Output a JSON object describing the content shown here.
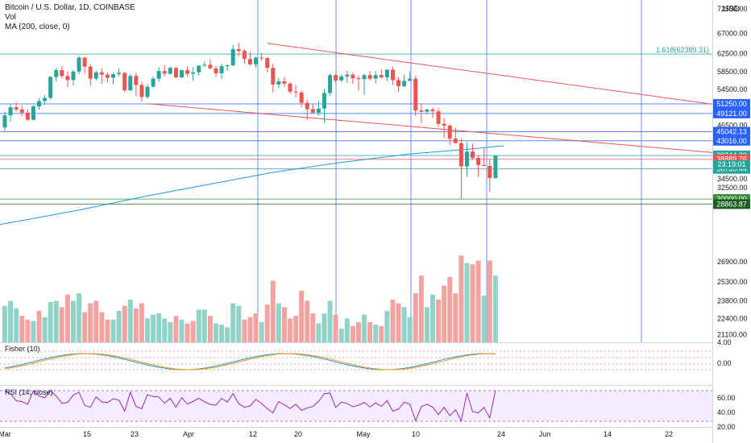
{
  "header": {
    "title": "Bitcoin / U.S. Dollar, 1D, COINBASE",
    "vol_label": "Vol",
    "ma_label": "MA (200, close, 0)",
    "currency": "USD"
  },
  "chart_data": {
    "type": "candlestick",
    "title": "Bitcoin / U.S. Dollar, 1D, COINBASE",
    "price_axis_ticks": [
      "72500.00",
      "67000.00",
      "62500.00",
      "58500.00",
      "54500.00",
      "50500.00",
      "46500.00",
      "42500.00",
      "38500.00",
      "34500.00",
      "32500.00",
      "30500.00",
      "26900.00",
      "25300.00",
      "23800.00",
      "22400.00",
      "21100.00"
    ],
    "date_labels": [
      "Mar",
      "15",
      "23",
      "Apr",
      "12",
      "20",
      "May",
      "10",
      "24",
      "Jun",
      "14",
      "22"
    ],
    "price_levels": [
      {
        "value": 62389.31,
        "label": "1.618(62389.31)",
        "color": "#26a69a"
      },
      {
        "value": 51250.0,
        "label": "51250.00",
        "color": "#2962ff"
      },
      {
        "value": 49121.0,
        "label": "49121.00",
        "color": "#2962ff"
      },
      {
        "value": 45042.13,
        "label": "45042.13",
        "color": "#2962ff"
      },
      {
        "value": 43016.0,
        "label": "43016.00",
        "color": "#2962ff"
      },
      {
        "value": 39744.2,
        "label": "39744.20",
        "color": "#26a69a"
      },
      {
        "value": 38889.76,
        "label": "38889.76",
        "color": "#ef5350"
      },
      {
        "value": 36735.44,
        "label": "36735.44",
        "color": "#26a69a"
      },
      {
        "value": 30000.0,
        "label": "30000.00",
        "color": "#388e3c"
      },
      {
        "value": 28863.87,
        "label": "28863.87",
        "color": "#1b5e20"
      }
    ],
    "countdown": "23:19:01",
    "last_price": 39744.2,
    "candles": [
      [
        46000,
        49500,
        45200,
        48700
      ],
      [
        48700,
        51200,
        47300,
        50500
      ],
      [
        50500,
        51700,
        49500,
        50000
      ],
      [
        50000,
        50900,
        48500,
        49300
      ],
      [
        49300,
        50000,
        47500,
        47700
      ],
      [
        47700,
        51000,
        47600,
        50700
      ],
      [
        50700,
        52500,
        50000,
        51900
      ],
      [
        51900,
        53200,
        51100,
        52600
      ],
      [
        52600,
        57500,
        52300,
        57300
      ],
      [
        57300,
        59300,
        56300,
        58800
      ],
      [
        58800,
        59700,
        57000,
        57500
      ],
      [
        57500,
        58500,
        55000,
        56600
      ],
      [
        56600,
        58900,
        55400,
        58500
      ],
      [
        58500,
        62000,
        57900,
        61600
      ],
      [
        61600,
        61800,
        58000,
        59600
      ],
      [
        59600,
        60200,
        55200,
        56900
      ],
      [
        56900,
        58700,
        56500,
        58300
      ],
      [
        58300,
        59200,
        55700,
        57800
      ],
      [
        57800,
        58200,
        56100,
        57100
      ],
      [
        57100,
        58200,
        55600,
        57900
      ],
      [
        57900,
        59200,
        57500,
        58200
      ],
      [
        58200,
        58400,
        53900,
        54300
      ],
      [
        54300,
        57900,
        54100,
        57500
      ],
      [
        57500,
        58200,
        53000,
        55500
      ],
      [
        55500,
        56200,
        51800,
        52800
      ],
      [
        52800,
        55700,
        52400,
        55100
      ],
      [
        55100,
        57400,
        54900,
        56900
      ],
      [
        56900,
        59500,
        56200,
        58600
      ],
      [
        58600,
        59900,
        57400,
        58000
      ],
      [
        58000,
        59600,
        57800,
        59300
      ],
      [
        59300,
        59600,
        57000,
        57200
      ],
      [
        57200,
        58900,
        57000,
        58800
      ],
      [
        58800,
        59700,
        57300,
        58000
      ],
      [
        58000,
        59500,
        56400,
        58300
      ],
      [
        58300,
        59900,
        57700,
        59800
      ],
      [
        59800,
        60800,
        59500,
        60000
      ],
      [
        60000,
        61200,
        59000,
        59200
      ],
      [
        59200,
        59800,
        57300,
        58100
      ],
      [
        58100,
        60200,
        56800,
        59700
      ],
      [
        59700,
        60100,
        58600,
        59900
      ],
      [
        59900,
        64400,
        59700,
        63500
      ],
      [
        63500,
        64900,
        61900,
        63100
      ],
      [
        63100,
        63500,
        60300,
        61300
      ],
      [
        61300,
        62800,
        59800,
        60100
      ],
      [
        60100,
        61800,
        59300,
        61600
      ],
      [
        61600,
        62600,
        60900,
        61500
      ],
      [
        61500,
        61700,
        58300,
        59300
      ],
      [
        59300,
        60200,
        53800,
        55600
      ],
      [
        55600,
        57100,
        54800,
        56300
      ],
      [
        56300,
        57300,
        55000,
        55800
      ],
      [
        55800,
        56100,
        53500,
        54000
      ],
      [
        54000,
        55500,
        52700,
        53800
      ],
      [
        53800,
        54200,
        50500,
        51500
      ],
      [
        51500,
        52200,
        47600,
        50100
      ],
      [
        50100,
        51200,
        49100,
        49300
      ],
      [
        49300,
        51900,
        48700,
        50200
      ],
      [
        50200,
        54600,
        47000,
        53700
      ],
      [
        53700,
        58000,
        53100,
        57700
      ],
      [
        57700,
        58000,
        55900,
        56500
      ],
      [
        56500,
        57900,
        56100,
        57400
      ],
      [
        57400,
        58700,
        56000,
        57800
      ],
      [
        57800,
        58300,
        55700,
        57000
      ],
      [
        57000,
        57600,
        54200,
        56800
      ],
      [
        56800,
        58100,
        53300,
        57700
      ],
      [
        57700,
        58600,
        56500,
        56900
      ],
      [
        56900,
        58600,
        55800,
        57700
      ],
      [
        57700,
        58900,
        56900,
        57200
      ],
      [
        57200,
        59000,
        56300,
        58900
      ],
      [
        58900,
        59600,
        55500,
        56600
      ],
      [
        56600,
        57300,
        54000,
        55200
      ],
      [
        55200,
        57800,
        55000,
        56400
      ],
      [
        56400,
        58500,
        56300,
        56900
      ],
      [
        56900,
        57600,
        48500,
        49800
      ],
      [
        49800,
        51200,
        46900,
        49500
      ],
      [
        49500,
        50200,
        48900,
        50000
      ],
      [
        50000,
        50500,
        48100,
        49600
      ],
      [
        49600,
        50300,
        46100,
        46800
      ],
      [
        46800,
        48100,
        43600,
        46400
      ],
      [
        46400,
        46700,
        42100,
        43500
      ],
      [
        43500,
        45900,
        42400,
        42500
      ],
      [
        42500,
        43600,
        30000,
        37300
      ],
      [
        37300,
        42600,
        35000,
        40600
      ],
      [
        40600,
        42400,
        38800,
        39200
      ],
      [
        39200,
        39900,
        34900,
        37600
      ],
      [
        37600,
        41300,
        37400,
        37400
      ],
      [
        37400,
        38900,
        31600,
        34700
      ],
      [
        34700,
        39800,
        34500,
        39744
      ]
    ],
    "volumes": [
      [
        23400,
        "up"
      ],
      [
        23800,
        "up"
      ],
      [
        23200,
        "up"
      ],
      [
        22600,
        "down"
      ],
      [
        22300,
        "down"
      ],
      [
        22200,
        "up"
      ],
      [
        23000,
        "down"
      ],
      [
        22500,
        "up"
      ],
      [
        23700,
        "up"
      ],
      [
        23800,
        "up"
      ],
      [
        23300,
        "down"
      ],
      [
        24300,
        "down"
      ],
      [
        23800,
        "up"
      ],
      [
        24400,
        "up"
      ],
      [
        22900,
        "down"
      ],
      [
        23600,
        "down"
      ],
      [
        23800,
        "down"
      ],
      [
        22900,
        "down"
      ],
      [
        22300,
        "down"
      ],
      [
        22300,
        "up"
      ],
      [
        23000,
        "up"
      ],
      [
        23400,
        "down"
      ],
      [
        23900,
        "up"
      ],
      [
        23200,
        "down"
      ],
      [
        23600,
        "down"
      ],
      [
        22400,
        "up"
      ],
      [
        22700,
        "up"
      ],
      [
        22800,
        "up"
      ],
      [
        22400,
        "up"
      ],
      [
        22100,
        "up"
      ],
      [
        22600,
        "down"
      ],
      [
        22300,
        "up"
      ],
      [
        22000,
        "down"
      ],
      [
        22200,
        "down"
      ],
      [
        23100,
        "up"
      ],
      [
        23100,
        "up"
      ],
      [
        22600,
        "down"
      ],
      [
        22000,
        "up"
      ],
      [
        21900,
        "up"
      ],
      [
        21700,
        "up"
      ],
      [
        23600,
        "up"
      ],
      [
        23400,
        "up"
      ],
      [
        22300,
        "down"
      ],
      [
        22500,
        "down"
      ],
      [
        22800,
        "down"
      ],
      [
        22100,
        "up"
      ],
      [
        23500,
        "down"
      ],
      [
        25400,
        "down"
      ],
      [
        23600,
        "up"
      ],
      [
        23300,
        "down"
      ],
      [
        22400,
        "down"
      ],
      [
        22600,
        "down"
      ],
      [
        24600,
        "down"
      ],
      [
        23800,
        "down"
      ],
      [
        22800,
        "down"
      ],
      [
        22000,
        "up"
      ],
      [
        22800,
        "up"
      ],
      [
        23800,
        "up"
      ],
      [
        22700,
        "down"
      ],
      [
        21600,
        "up"
      ],
      [
        22400,
        "up"
      ],
      [
        21800,
        "down"
      ],
      [
        22100,
        "down"
      ],
      [
        22700,
        "up"
      ],
      [
        22100,
        "down"
      ],
      [
        21900,
        "up"
      ],
      [
        21800,
        "down"
      ],
      [
        23000,
        "up"
      ],
      [
        23900,
        "down"
      ],
      [
        23600,
        "down"
      ],
      [
        23300,
        "up"
      ],
      [
        22500,
        "up"
      ],
      [
        24400,
        "down"
      ],
      [
        25800,
        "down"
      ],
      [
        23300,
        "up"
      ],
      [
        24300,
        "up"
      ],
      [
        23900,
        "down"
      ],
      [
        25000,
        "down"
      ],
      [
        25700,
        "down"
      ],
      [
        24400,
        "down"
      ],
      [
        27400,
        "down"
      ],
      [
        26800,
        "up"
      ],
      [
        26700,
        "down"
      ],
      [
        27000,
        "down"
      ],
      [
        24200,
        "up"
      ],
      [
        27000,
        "down"
      ],
      [
        25800,
        "up"
      ]
    ],
    "fisher_axis_ticks": [
      "4.00",
      "0.00"
    ],
    "rsi_label": "RSI (14, close)",
    "rsi_axis_ticks": [
      "60.00",
      "40.00",
      "20.00"
    ],
    "fisher_label": "Fisher (10)"
  }
}
